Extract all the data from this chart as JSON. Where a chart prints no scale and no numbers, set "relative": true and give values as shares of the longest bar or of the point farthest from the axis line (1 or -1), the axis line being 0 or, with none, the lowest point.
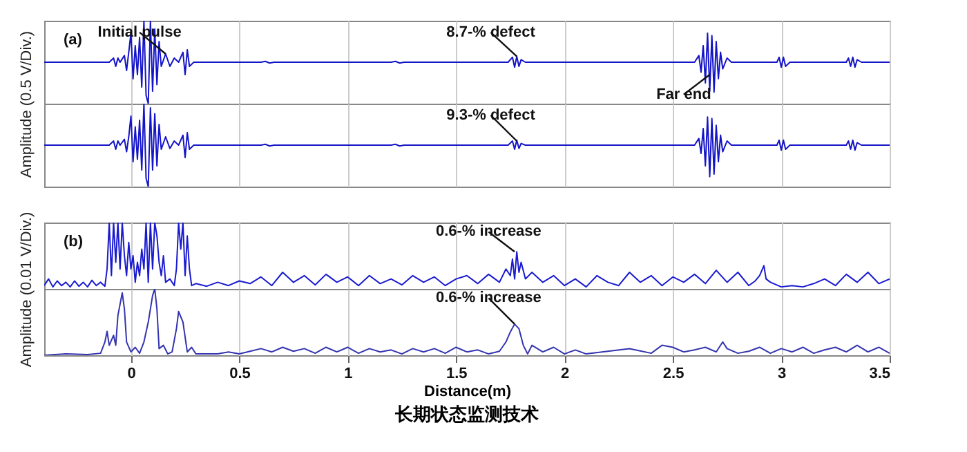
{
  "chart_data": [
    {
      "type": "line",
      "relative": true,
      "xlim": [
        -0.4,
        3.5
      ],
      "xticks": [
        0,
        0.5,
        1,
        1.5,
        2,
        2.5,
        3,
        3.5
      ],
      "tick_labels": false,
      "grid": "x",
      "ylabel": "Amplitude (0.5 V/Div.)",
      "annotations": [
        "(a)",
        {
          "text": "Initial pulse",
          "x": 0.16,
          "y": 0.6
        },
        {
          "text": "8.7-% defect",
          "x": 1.78,
          "y": 0.57
        },
        {
          "text": "Far end",
          "x": 2.67,
          "y": 0.35
        }
      ],
      "series": [
        {
          "color": "#1414c8",
          "x": [
            -0.4,
            -0.1,
            -0.08,
            -0.07,
            -0.06,
            -0.05,
            -0.03,
            -0.02,
            -0.01,
            0.0,
            0.01,
            0.02,
            0.03,
            0.04,
            0.05,
            0.06,
            0.07,
            0.08,
            0.09,
            0.1,
            0.11,
            0.12,
            0.13,
            0.14,
            0.16,
            0.18,
            0.2,
            0.22,
            0.24,
            0.25,
            0.26,
            0.27,
            0.29,
            0.6,
            0.62,
            0.64,
            0.66,
            1.2,
            1.22,
            1.24,
            1.26,
            1.74,
            1.76,
            1.77,
            1.78,
            1.79,
            1.8,
            1.82,
            2.6,
            2.62,
            2.63,
            2.64,
            2.65,
            2.66,
            2.67,
            2.68,
            2.69,
            2.7,
            2.71,
            2.72,
            2.73,
            2.75,
            2.77,
            2.98,
            2.99,
            3.0,
            3.01,
            3.02,
            3.04,
            3.3,
            3.31,
            3.32,
            3.33,
            3.34,
            3.35,
            3.37,
            3.5
          ],
          "values": [
            0.5,
            0.5,
            0.55,
            0.45,
            0.55,
            0.5,
            0.58,
            0.4,
            0.62,
            0.85,
            0.3,
            0.7,
            0.35,
            0.8,
            0.2,
            1.0,
            0.1,
            0.0,
            1.0,
            0.15,
            0.9,
            0.23,
            0.75,
            0.45,
            0.6,
            0.45,
            0.55,
            0.5,
            0.62,
            0.35,
            0.65,
            0.45,
            0.5,
            0.5,
            0.51,
            0.49,
            0.5,
            0.5,
            0.51,
            0.49,
            0.5,
            0.5,
            0.56,
            0.44,
            0.57,
            0.45,
            0.53,
            0.5,
            0.5,
            0.58,
            0.38,
            0.7,
            0.25,
            0.85,
            0.15,
            0.82,
            0.14,
            0.75,
            0.3,
            0.62,
            0.42,
            0.55,
            0.5,
            0.5,
            0.56,
            0.44,
            0.56,
            0.45,
            0.5,
            0.5,
            0.55,
            0.45,
            0.56,
            0.44,
            0.53,
            0.5,
            0.5
          ]
        }
      ]
    },
    {
      "type": "line",
      "relative": true,
      "xlim": [
        -0.4,
        3.5
      ],
      "xticks": [
        0,
        0.5,
        1,
        1.5,
        2,
        2.5,
        3,
        3.5
      ],
      "tick_labels": false,
      "grid": "x",
      "annotations": [
        {
          "text": "9.3-% defect",
          "x": 1.78,
          "y": 0.55
        }
      ],
      "series": [
        {
          "color": "#1414c8",
          "x": [
            -0.4,
            -0.1,
            -0.08,
            -0.07,
            -0.06,
            -0.05,
            -0.03,
            -0.02,
            -0.01,
            0.0,
            0.01,
            0.02,
            0.03,
            0.04,
            0.05,
            0.06,
            0.07,
            0.08,
            0.09,
            0.1,
            0.11,
            0.12,
            0.13,
            0.14,
            0.16,
            0.18,
            0.2,
            0.22,
            0.24,
            0.25,
            0.26,
            0.27,
            0.29,
            0.6,
            0.62,
            0.64,
            0.66,
            1.2,
            1.22,
            1.24,
            1.26,
            1.74,
            1.76,
            1.77,
            1.78,
            1.79,
            1.8,
            1.82,
            2.6,
            2.62,
            2.63,
            2.64,
            2.65,
            2.66,
            2.67,
            2.68,
            2.69,
            2.7,
            2.71,
            2.72,
            2.73,
            2.75,
            2.77,
            2.98,
            2.99,
            3.0,
            3.01,
            3.02,
            3.04,
            3.3,
            3.31,
            3.32,
            3.33,
            3.34,
            3.35,
            3.37,
            3.5
          ],
          "values": [
            0.5,
            0.5,
            0.55,
            0.45,
            0.55,
            0.5,
            0.57,
            0.42,
            0.6,
            0.85,
            0.3,
            0.72,
            0.33,
            0.8,
            0.2,
            1.0,
            0.1,
            0.0,
            0.95,
            0.2,
            0.88,
            0.25,
            0.75,
            0.45,
            0.6,
            0.46,
            0.55,
            0.5,
            0.62,
            0.35,
            0.65,
            0.45,
            0.5,
            0.5,
            0.51,
            0.49,
            0.5,
            0.5,
            0.51,
            0.49,
            0.5,
            0.5,
            0.55,
            0.45,
            0.56,
            0.46,
            0.52,
            0.5,
            0.5,
            0.58,
            0.4,
            0.7,
            0.25,
            0.84,
            0.12,
            0.82,
            0.15,
            0.74,
            0.3,
            0.62,
            0.42,
            0.55,
            0.5,
            0.5,
            0.56,
            0.44,
            0.56,
            0.45,
            0.5,
            0.5,
            0.55,
            0.45,
            0.56,
            0.44,
            0.53,
            0.5,
            0.5
          ]
        }
      ]
    },
    {
      "type": "line",
      "relative": true,
      "xlim": [
        -0.4,
        3.5
      ],
      "xticks": [
        0,
        0.5,
        1,
        1.5,
        2,
        2.5,
        3,
        3.5
      ],
      "tick_labels": false,
      "grid": "x",
      "ylabel": "Amplitude (0.01 V/Div.)",
      "annotations": [
        "(b)",
        {
          "text": "0.6-% increase",
          "x": 1.77,
          "y": 0.56
        }
      ],
      "series": [
        {
          "color": "#1a1ad0",
          "x": [
            -0.4,
            -0.38,
            -0.36,
            -0.34,
            -0.32,
            -0.3,
            -0.28,
            -0.26,
            -0.24,
            -0.22,
            -0.2,
            -0.18,
            -0.16,
            -0.14,
            -0.12,
            -0.11,
            -0.1,
            -0.09,
            -0.08,
            -0.07,
            -0.06,
            -0.05,
            -0.04,
            -0.03,
            -0.02,
            -0.01,
            0.0,
            0.01,
            0.02,
            0.03,
            0.04,
            0.05,
            0.06,
            0.07,
            0.08,
            0.09,
            0.1,
            0.11,
            0.12,
            0.13,
            0.14,
            0.15,
            0.16,
            0.18,
            0.2,
            0.21,
            0.22,
            0.23,
            0.24,
            0.25,
            0.26,
            0.27,
            0.28,
            0.3,
            0.35,
            0.4,
            0.45,
            0.5,
            0.55,
            0.6,
            0.65,
            0.7,
            0.75,
            0.8,
            0.85,
            0.9,
            0.95,
            1.0,
            1.05,
            1.1,
            1.15,
            1.2,
            1.25,
            1.3,
            1.35,
            1.4,
            1.45,
            1.5,
            1.55,
            1.6,
            1.65,
            1.7,
            1.73,
            1.75,
            1.76,
            1.77,
            1.78,
            1.79,
            1.8,
            1.82,
            1.85,
            1.9,
            1.95,
            2.0,
            2.05,
            2.1,
            2.15,
            2.2,
            2.25,
            2.3,
            2.35,
            2.4,
            2.45,
            2.5,
            2.55,
            2.6,
            2.65,
            2.7,
            2.75,
            2.8,
            2.85,
            2.88,
            2.9,
            2.92,
            2.93,
            2.95,
            3.0,
            3.05,
            3.1,
            3.15,
            3.2,
            3.25,
            3.3,
            3.35,
            3.4,
            3.45,
            3.5
          ],
          "values": [
            0.05,
            0.15,
            0.03,
            0.12,
            0.05,
            0.1,
            0.03,
            0.12,
            0.04,
            0.1,
            0.03,
            0.13,
            0.05,
            0.1,
            0.04,
            0.3,
            1,
            0.2,
            1,
            0.4,
            1,
            0.3,
            1,
            0.5,
            0.2,
            0.7,
            0.3,
            0.5,
            0.1,
            0.4,
            0.2,
            0.6,
            0.3,
            1,
            0.1,
            1,
            0.3,
            1,
            0.8,
            0.4,
            0.2,
            0.5,
            0.1,
            0.15,
            0.05,
            0.3,
            1,
            0.6,
            1,
            0.2,
            0.8,
            0.3,
            0.05,
            0.08,
            0.04,
            0.1,
            0.05,
            0.12,
            0.08,
            0.18,
            0.05,
            0.25,
            0.1,
            0.2,
            0.06,
            0.22,
            0.1,
            0.18,
            0.05,
            0.2,
            0.08,
            0.15,
            0.06,
            0.2,
            0.1,
            0.18,
            0.05,
            0.15,
            0.2,
            0.08,
            0.22,
            0.1,
            0.3,
            0.2,
            0.45,
            0.15,
            0.56,
            0.25,
            0.4,
            0.15,
            0.25,
            0.1,
            0.2,
            0.05,
            0.15,
            0.03,
            0.2,
            0.1,
            0.05,
            0.25,
            0.1,
            0.2,
            0.05,
            0.18,
            0.1,
            0.22,
            0.08,
            0.28,
            0.1,
            0.25,
            0.05,
            0.12,
            0.2,
            0.35,
            0.15,
            0.1,
            0.03,
            0.05,
            0.03,
            0.08,
            0.15,
            0.05,
            0.22,
            0.1,
            0.25,
            0.08,
            0.15
          ]
        }
      ]
    },
    {
      "type": "line",
      "relative": true,
      "xlim": [
        -0.4,
        3.5
      ],
      "xticks": [
        0,
        0.5,
        1,
        1.5,
        2,
        2.5,
        3,
        3.5
      ],
      "grid": "x",
      "xlabel": "Distance(m)",
      "title": "长期状态监测技术",
      "annotations": [
        {
          "text": "0.6-% increase",
          "x": 1.77,
          "y": 0.47
        }
      ],
      "series": [
        {
          "color": "#3434b0",
          "x": [
            -0.4,
            -0.3,
            -0.2,
            -0.14,
            -0.12,
            -0.11,
            -0.1,
            -0.08,
            -0.07,
            -0.06,
            -0.04,
            -0.03,
            -0.02,
            0.0,
            0.02,
            0.04,
            0.06,
            0.08,
            0.1,
            0.11,
            0.12,
            0.13,
            0.15,
            0.17,
            0.19,
            0.21,
            0.22,
            0.24,
            0.26,
            0.28,
            0.3,
            0.4,
            0.45,
            0.5,
            0.55,
            0.6,
            0.65,
            0.7,
            0.75,
            0.8,
            0.85,
            0.9,
            0.95,
            1.0,
            1.05,
            1.1,
            1.15,
            1.2,
            1.25,
            1.3,
            1.35,
            1.4,
            1.45,
            1.5,
            1.55,
            1.6,
            1.65,
            1.7,
            1.73,
            1.75,
            1.77,
            1.79,
            1.81,
            1.83,
            1.85,
            1.9,
            1.95,
            2.0,
            2.05,
            2.1,
            2.2,
            2.3,
            2.4,
            2.45,
            2.5,
            2.55,
            2.6,
            2.65,
            2.7,
            2.73,
            2.75,
            2.8,
            2.85,
            2.9,
            2.95,
            3.0,
            3.05,
            3.1,
            3.15,
            3.2,
            3.25,
            3.3,
            3.35,
            3.4,
            3.45,
            3.5
          ],
          "values": [
            0,
            0.02,
            0.01,
            0.03,
            0.2,
            0.36,
            0.15,
            0.3,
            0.15,
            0.6,
            0.94,
            0.7,
            0.2,
            0.05,
            0.12,
            0.03,
            0.2,
            0.5,
            0.9,
            1.0,
            0.7,
            0.1,
            0.15,
            0.02,
            0.05,
            0.4,
            0.66,
            0.5,
            0.05,
            0.12,
            0.02,
            0.02,
            0.05,
            0.02,
            0.06,
            0.1,
            0.05,
            0.12,
            0.06,
            0.1,
            0.03,
            0.12,
            0.05,
            0.12,
            0.03,
            0.1,
            0.05,
            0.08,
            0.02,
            0.1,
            0.05,
            0.1,
            0.03,
            0.12,
            0.05,
            0.08,
            0.02,
            0.06,
            0.2,
            0.35,
            0.47,
            0.4,
            0.15,
            0.02,
            0.15,
            0.05,
            0.12,
            0.02,
            0.08,
            0.02,
            0.06,
            0.1,
            0.03,
            0.15,
            0.12,
            0.05,
            0.08,
            0.12,
            0.05,
            0.2,
            0.1,
            0.03,
            0.06,
            0.12,
            0.03,
            0.1,
            0.05,
            0.12,
            0.03,
            0.08,
            0.12,
            0.05,
            0.15,
            0.05,
            0.12,
            0.03
          ]
        }
      ]
    }
  ]
}
